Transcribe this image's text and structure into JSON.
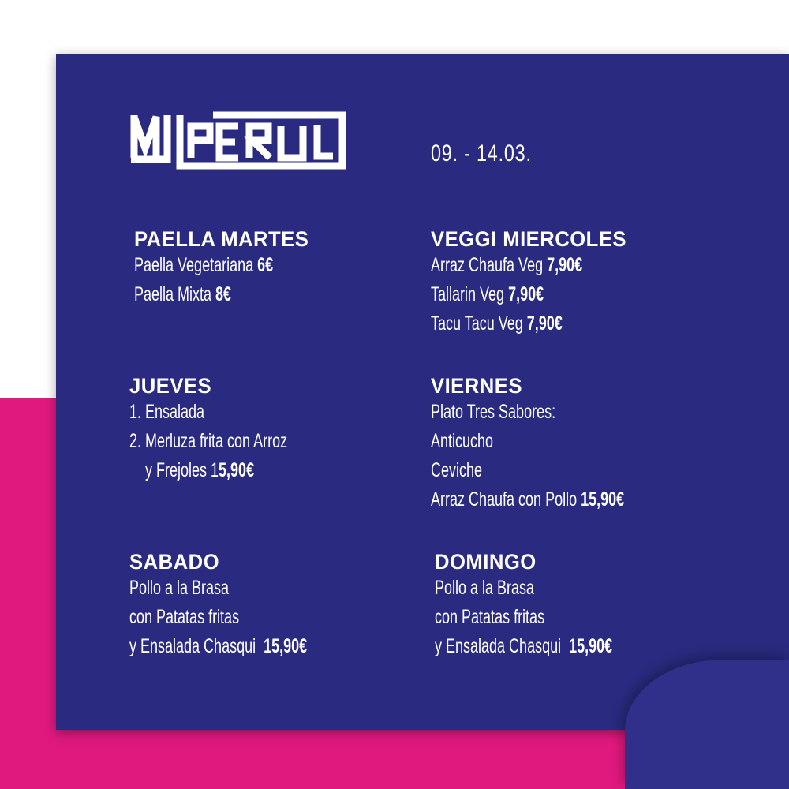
{
  "logo": {
    "text": "MI PERU"
  },
  "date": "09. - 14.03.",
  "colors": {
    "panel": "#2a2a80",
    "accent": "#e0197f",
    "text": "#ffffff"
  },
  "sections": [
    {
      "title": "PAELLA MARTES",
      "lines": [
        {
          "text": "Paella Vegetariana ",
          "price": "6€"
        },
        {
          "text": "Paella Mixta ",
          "price": "8€"
        }
      ]
    },
    {
      "title": "VEGGI MIERCOLES",
      "lines": [
        {
          "text": "Arraz Chaufa Veg ",
          "price": "7,90€"
        },
        {
          "text": "Tallarin Veg ",
          "price": "7,90€"
        },
        {
          "text": "Tacu Tacu Veg ",
          "price": "7,90€"
        }
      ]
    },
    {
      "title": "JUEVES",
      "lines": [
        {
          "text": "1. Ensalada",
          "price": ""
        },
        {
          "text": "2. Merluza frita con Arroz",
          "price": ""
        },
        {
          "text": "    y Frejoles 1",
          "price": "5,90€"
        }
      ]
    },
    {
      "title": "VIERNES",
      "lines": [
        {
          "text": "Plato Tres Sabores:",
          "price": ""
        },
        {
          "text": "Anticucho",
          "price": ""
        },
        {
          "text": "Ceviche",
          "price": ""
        },
        {
          "text": "Arraz Chaufa con Pollo ",
          "price": "15,90€"
        }
      ]
    },
    {
      "title": "SABADO",
      "lines": [
        {
          "text": "Pollo a la Brasa",
          "price": ""
        },
        {
          "text": "con Patatas fritas",
          "price": ""
        },
        {
          "text": "y Ensalada Chasqui  ",
          "price": "15,90€"
        }
      ]
    },
    {
      "title": "DOMINGO",
      "lines": [
        {
          "text": "Pollo a la Brasa",
          "price": ""
        },
        {
          "text": "con Patatas fritas",
          "price": ""
        },
        {
          "text": "y Ensalada Chasqui  ",
          "price": "15,90€"
        }
      ]
    }
  ]
}
